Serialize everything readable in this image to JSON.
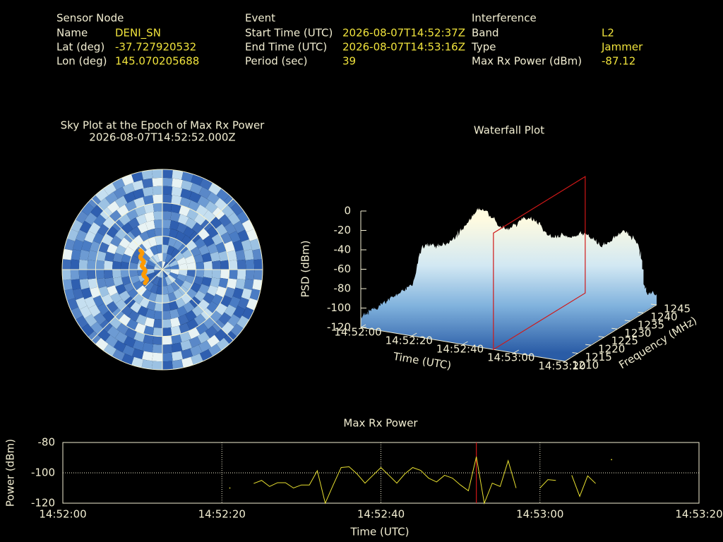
{
  "info": {
    "sensor_node": {
      "title": "Sensor Node",
      "rows": [
        [
          "Name",
          "DENI_SN"
        ],
        [
          "Lat (deg)",
          "-37.727920532"
        ],
        [
          "Lon (deg)",
          "145.070205688"
        ]
      ]
    },
    "event": {
      "title": "Event",
      "rows": [
        [
          "Start Time (UTC)",
          "2026-08-07T14:52:37Z"
        ],
        [
          "End Time (UTC)",
          "2026-08-07T14:53:16Z"
        ],
        [
          "Period (sec)",
          "39"
        ]
      ]
    },
    "interference": {
      "title": "Interference",
      "rows": [
        [
          "Band",
          "L2"
        ],
        [
          "Type",
          "Jammer"
        ],
        [
          "Max Rx Power (dBm)",
          "-87.12"
        ]
      ]
    }
  },
  "chart_data": [
    {
      "type": "polar",
      "title": "Sky Plot at the Epoch of Max Rx Power",
      "subtitle": "2026-08-07T14:52:52.000Z"
    },
    {
      "type": "surface3d",
      "title": "Waterfall Plot",
      "xlabel": "Time (UTC)",
      "ylabel": "Frequency (MHz)",
      "zlabel": "PSD (dBm)",
      "xlim": [
        "14:52:00",
        "14:53:20"
      ],
      "xticks": [
        "14:52:00",
        "14:52:20",
        "14:52:40",
        "14:53:00",
        "14:53:20"
      ],
      "ylim": [
        1210,
        1245
      ],
      "yticks": [
        1210,
        1215,
        1220,
        1225,
        1230,
        1235,
        1240,
        1245
      ],
      "zlim": [
        -120,
        0
      ],
      "zticks": [
        0,
        -20,
        -40,
        -60,
        -80,
        -100,
        -120
      ],
      "marker_x": "14:52:52",
      "marker_color": "#d01818"
    },
    {
      "type": "line",
      "title": "Max Rx Power",
      "xlabel": "Time (UTC)",
      "ylabel": "Power (dBm)",
      "xlim": [
        "14:52:00",
        "14:53:20"
      ],
      "xticks": [
        "14:52:00",
        "14:52:20",
        "14:52:40",
        "14:53:00",
        "14:53:20"
      ],
      "ylim": [
        -120,
        -80
      ],
      "yticks": [
        -80,
        -100,
        -120
      ],
      "grid": true,
      "marker_x": "14:52:52",
      "marker_color": "#d01818",
      "x": [
        "14:52:21",
        "14:52:22",
        "14:52:23",
        "14:52:24",
        "14:52:25",
        "14:52:26",
        "14:52:27",
        "14:52:28",
        "14:52:29",
        "14:52:30",
        "14:52:31",
        "14:52:32",
        "14:52:33",
        "14:52:34",
        "14:52:35",
        "14:52:36",
        "14:52:37",
        "14:52:38",
        "14:52:39",
        "14:52:40",
        "14:52:41",
        "14:52:42",
        "14:52:43",
        "14:52:44",
        "14:52:45",
        "14:52:46",
        "14:52:47",
        "14:52:48",
        "14:52:49",
        "14:52:50",
        "14:52:51",
        "14:52:52",
        "14:52:53",
        "14:52:54",
        "14:52:55",
        "14:52:56",
        "14:52:57",
        "14:52:58",
        "14:52:59",
        "14:53:00",
        "14:53:01",
        "14:53:02",
        "14:53:03",
        "14:53:04",
        "14:53:05",
        "14:53:06",
        "14:53:07",
        "14:53:08",
        "14:53:09"
      ],
      "series": [
        {
          "name": "Max Rx Power",
          "color": "#e8e030",
          "values": [
            -110,
            null,
            null,
            -107,
            -105,
            -109,
            -106.5,
            -106.5,
            -110,
            -108,
            -108,
            -98.6,
            -120,
            -108,
            -96.5,
            -96,
            -100.7,
            -106.8,
            -101.6,
            -96.5,
            -101.6,
            -106.8,
            -100.7,
            -96.5,
            -98.4,
            -103.5,
            -106,
            -101.6,
            -103.5,
            -108,
            -111.8,
            -89.4,
            -120,
            -106.8,
            -109,
            -92,
            -110,
            null,
            null,
            -110,
            -104.5,
            -105,
            null,
            -101.6,
            -115.5,
            -102,
            -107,
            null,
            -91.3
          ]
        }
      ]
    }
  ]
}
